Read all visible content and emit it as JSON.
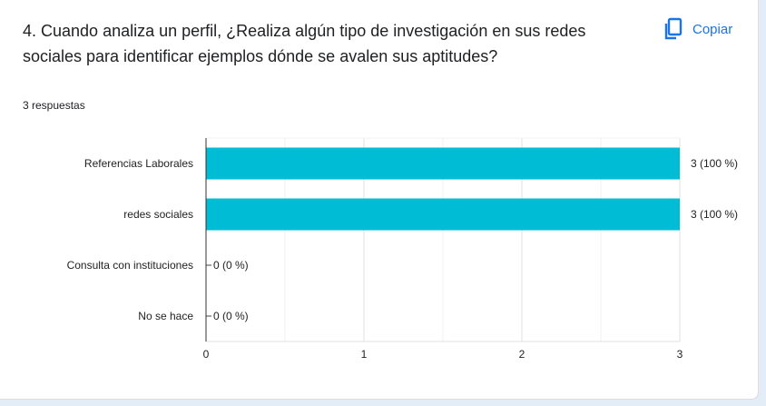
{
  "question": {
    "title": "4. Cuando analiza un perfil, ¿Realiza algún tipo de investigación en sus redes sociales para identificar ejemplos dónde se avalen sus aptitudes?",
    "copy_label": "Copiar",
    "copy_icon": "copy-icon",
    "responses_label": "3 respuestas"
  },
  "colors": {
    "bar": "#00bcd4",
    "accent": "#1a73e8",
    "text": "#202124"
  },
  "chart_data": {
    "type": "bar",
    "orientation": "horizontal",
    "categories": [
      "Referencias Laborales",
      "redes sociales",
      "Consulta con instituciones",
      "No se hace"
    ],
    "values": [
      3,
      3,
      0,
      0
    ],
    "data_labels": [
      "3 (100 %)",
      "3 (100 %)",
      "0 (0 %)",
      "0 (0 %)"
    ],
    "xlim": [
      0,
      3
    ],
    "xticks": [
      0,
      1,
      2,
      3
    ],
    "grid": true
  }
}
